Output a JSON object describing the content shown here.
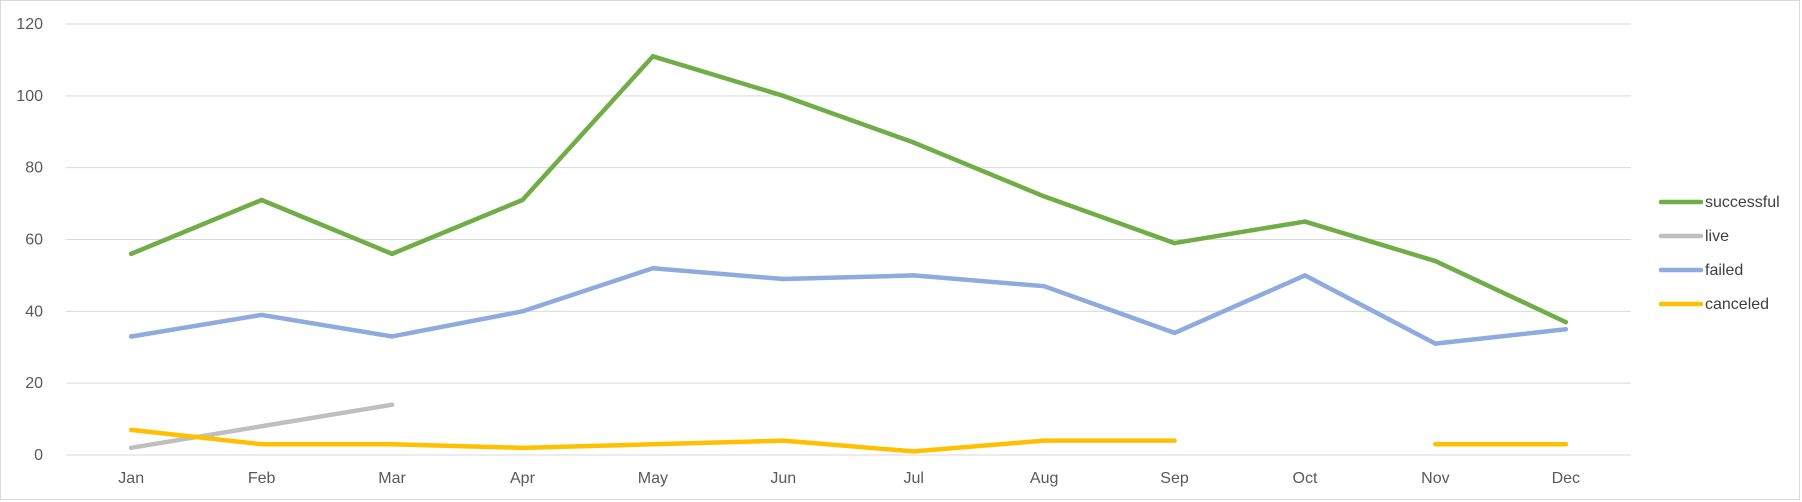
{
  "chart_data": {
    "type": "line",
    "title": "",
    "xlabel": "",
    "ylabel": "",
    "categories": [
      "Jan",
      "Feb",
      "Mar",
      "Apr",
      "May",
      "Jun",
      "Jul",
      "Aug",
      "Sep",
      "Oct",
      "Nov",
      "Dec"
    ],
    "ylim": [
      0,
      120
    ],
    "yticks": [
      0,
      20,
      40,
      60,
      80,
      100,
      120
    ],
    "grid": true,
    "legend_position": "right",
    "series": [
      {
        "name": "successful",
        "color": "#70ad47",
        "values": [
          56,
          71,
          56,
          71,
          111,
          100,
          87,
          72,
          59,
          65,
          54,
          37
        ]
      },
      {
        "name": "live",
        "color": "#bfbfbf",
        "values": [
          2,
          8,
          14,
          null,
          null,
          null,
          null,
          null,
          null,
          null,
          null,
          null
        ]
      },
      {
        "name": "failed",
        "color": "#8faadc",
        "values": [
          33,
          39,
          33,
          40,
          52,
          49,
          50,
          47,
          34,
          50,
          31,
          35
        ]
      },
      {
        "name": "canceled",
        "color": "#ffc000",
        "values": [
          7,
          3,
          3,
          2,
          3,
          4,
          1,
          4,
          4,
          null,
          3,
          3
        ]
      }
    ]
  }
}
